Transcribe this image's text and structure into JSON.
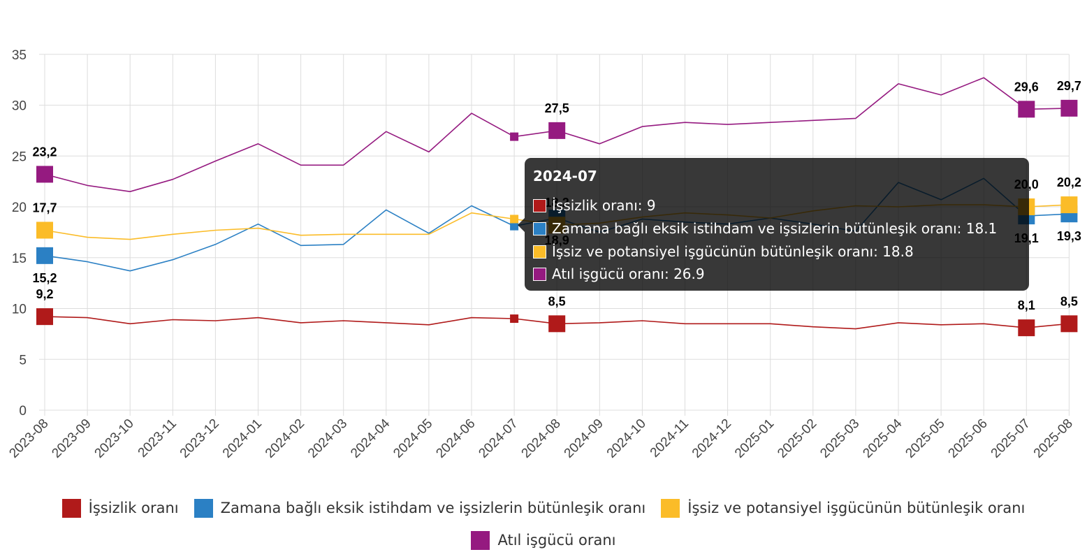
{
  "chart_data": {
    "type": "line",
    "categories": [
      "2023-08",
      "2023-09",
      "2023-10",
      "2023-11",
      "2023-12",
      "2024-01",
      "2024-02",
      "2024-03",
      "2024-04",
      "2024-05",
      "2024-06",
      "2024-07",
      "2024-08",
      "2024-09",
      "2024-10",
      "2024-11",
      "2024-12",
      "2025-01",
      "2025-02",
      "2025-03",
      "2025-04",
      "2025-05",
      "2025-06",
      "2025-07",
      "2025-08"
    ],
    "series": [
      {
        "name": "İşsizlik oranı",
        "color": "#b01a1a",
        "values": [
          9.2,
          9.1,
          8.5,
          8.9,
          8.8,
          9.1,
          8.6,
          8.8,
          8.6,
          8.4,
          9.1,
          9.0,
          8.5,
          8.6,
          8.8,
          8.5,
          8.5,
          8.5,
          8.2,
          8.0,
          8.6,
          8.4,
          8.5,
          8.1,
          8.5
        ]
      },
      {
        "name": "Zamana bağlı eksik istihdam ve işsizlerin bütünleşik oranı",
        "color": "#2b80c4",
        "values": [
          15.2,
          14.6,
          13.7,
          14.8,
          16.3,
          18.3,
          16.2,
          16.3,
          19.7,
          17.4,
          20.1,
          18.1,
          18.9,
          17.5,
          18.8,
          18.5,
          18.3,
          18.9,
          18.3,
          17.6,
          22.4,
          20.7,
          22.8,
          19.1,
          19.3
        ]
      },
      {
        "name": "İşsiz ve potansiyel işgücünün bütünleşik oranı",
        "color": "#fbbc28",
        "values": [
          17.7,
          17.0,
          16.8,
          17.3,
          17.7,
          17.9,
          17.2,
          17.3,
          17.3,
          17.3,
          19.4,
          18.8,
          18.2,
          18.4,
          19.0,
          19.4,
          19.2,
          18.9,
          19.6,
          20.1,
          20.0,
          20.2,
          20.2,
          20.0,
          20.2
        ]
      },
      {
        "name": "Atıl işgücü oranı",
        "color": "#951a80",
        "values": [
          23.2,
          22.1,
          21.5,
          22.7,
          24.5,
          26.2,
          24.1,
          24.1,
          27.4,
          25.4,
          29.2,
          26.9,
          27.5,
          26.2,
          27.9,
          28.3,
          28.1,
          28.3,
          28.5,
          28.7,
          32.1,
          31.0,
          32.7,
          29.6,
          29.7
        ]
      }
    ],
    "ylim": [
      0,
      35
    ],
    "yticks": [
      0,
      5,
      10,
      15,
      20,
      25,
      30,
      35
    ],
    "grid": true,
    "legend_position": "bottom",
    "data_labels": [
      {
        "series": 0,
        "index": 0,
        "text": "9,2"
      },
      {
        "series": 0,
        "index": 12,
        "text": "8,5"
      },
      {
        "series": 0,
        "index": 23,
        "text": "8,1"
      },
      {
        "series": 0,
        "index": 24,
        "text": "8,5"
      },
      {
        "series": 1,
        "index": 0,
        "text": "15,2"
      },
      {
        "series": 1,
        "index": 12,
        "text": "18,9"
      },
      {
        "series": 1,
        "index": 23,
        "text": "19,1"
      },
      {
        "series": 1,
        "index": 24,
        "text": "19,3"
      },
      {
        "series": 2,
        "index": 0,
        "text": "17,7"
      },
      {
        "series": 2,
        "index": 12,
        "text": "18,2"
      },
      {
        "series": 2,
        "index": 23,
        "text": "20,0"
      },
      {
        "series": 2,
        "index": 24,
        "text": "20,2"
      },
      {
        "series": 3,
        "index": 0,
        "text": "23,2"
      },
      {
        "series": 3,
        "index": 12,
        "text": "27,5"
      },
      {
        "series": 3,
        "index": 23,
        "text": "29,6"
      },
      {
        "series": 3,
        "index": 24,
        "text": "29,7"
      }
    ],
    "highlighted_category": "2024-07"
  },
  "tooltip": {
    "title": "2024-07",
    "rows": [
      {
        "text": "İşsizlik oranı: 9",
        "color": "#b01a1a"
      },
      {
        "text": "Zamana bağlı eksik istihdam ve işsizlerin bütünleşik oranı: 18.1",
        "color": "#2b80c4"
      },
      {
        "text": "İşsiz ve potansiyel işgücünün bütünleşik oranı: 18.8",
        "color": "#fbbc28"
      },
      {
        "text": "Atıl işgücü oranı: 26.9",
        "color": "#951a80"
      }
    ]
  },
  "legend": {
    "items": [
      {
        "label": "İşsizlik oranı",
        "color": "#b01a1a"
      },
      {
        "label": "Zamana bağlı eksik istihdam ve işsizlerin bütünleşik oranı",
        "color": "#2b80c4"
      },
      {
        "label": "İşsiz ve potansiyel işgücünün bütünleşik oranı",
        "color": "#fbbc28"
      },
      {
        "label": "Atıl işgücü oranı",
        "color": "#951a80"
      }
    ]
  }
}
